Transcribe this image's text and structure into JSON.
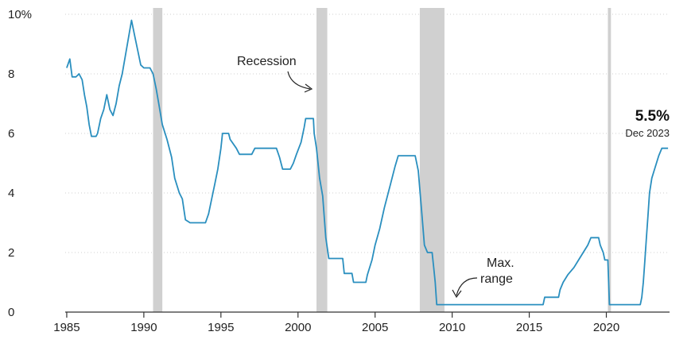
{
  "chart_data": {
    "type": "line",
    "series": [
      {
        "color": "#2a8fbf",
        "points": [
          [
            1985.0,
            8.2
          ],
          [
            1985.2,
            8.5
          ],
          [
            1985.35,
            7.9
          ],
          [
            1985.6,
            7.9
          ],
          [
            1985.8,
            8.0
          ],
          [
            1986.0,
            7.8
          ],
          [
            1986.15,
            7.3
          ],
          [
            1986.3,
            6.9
          ],
          [
            1986.45,
            6.3
          ],
          [
            1986.6,
            5.9
          ],
          [
            1986.9,
            5.9
          ],
          [
            1987.0,
            6.0
          ],
          [
            1987.2,
            6.5
          ],
          [
            1987.4,
            6.8
          ],
          [
            1987.6,
            7.3
          ],
          [
            1987.8,
            6.8
          ],
          [
            1988.0,
            6.6
          ],
          [
            1988.2,
            7.0
          ],
          [
            1988.4,
            7.6
          ],
          [
            1988.6,
            8.0
          ],
          [
            1988.8,
            8.6
          ],
          [
            1989.0,
            9.2
          ],
          [
            1989.2,
            9.8
          ],
          [
            1989.4,
            9.3
          ],
          [
            1989.6,
            8.8
          ],
          [
            1989.8,
            8.3
          ],
          [
            1990.0,
            8.2
          ],
          [
            1990.4,
            8.2
          ],
          [
            1990.6,
            8.0
          ],
          [
            1990.8,
            7.5
          ],
          [
            1991.0,
            6.9
          ],
          [
            1991.2,
            6.3
          ],
          [
            1991.5,
            5.8
          ],
          [
            1991.8,
            5.2
          ],
          [
            1992.0,
            4.5
          ],
          [
            1992.3,
            4.0
          ],
          [
            1992.5,
            3.8
          ],
          [
            1992.7,
            3.1
          ],
          [
            1993.0,
            3.0
          ],
          [
            1993.5,
            3.0
          ],
          [
            1994.0,
            3.0
          ],
          [
            1994.2,
            3.3
          ],
          [
            1994.4,
            3.8
          ],
          [
            1994.6,
            4.3
          ],
          [
            1994.8,
            4.8
          ],
          [
            1995.0,
            5.5
          ],
          [
            1995.1,
            6.0
          ],
          [
            1995.5,
            6.0
          ],
          [
            1995.6,
            5.8
          ],
          [
            1996.0,
            5.5
          ],
          [
            1996.2,
            5.3
          ],
          [
            1997.0,
            5.3
          ],
          [
            1997.2,
            5.5
          ],
          [
            1998.6,
            5.5
          ],
          [
            1998.8,
            5.2
          ],
          [
            1999.0,
            4.8
          ],
          [
            1999.5,
            4.8
          ],
          [
            1999.7,
            5.0
          ],
          [
            1999.9,
            5.3
          ],
          [
            2000.2,
            5.7
          ],
          [
            2000.4,
            6.2
          ],
          [
            2000.5,
            6.5
          ],
          [
            2001.0,
            6.5
          ],
          [
            2001.05,
            6.0
          ],
          [
            2001.2,
            5.5
          ],
          [
            2001.4,
            4.5
          ],
          [
            2001.6,
            3.9
          ],
          [
            2001.8,
            2.5
          ],
          [
            2002.0,
            1.8
          ],
          [
            2002.9,
            1.8
          ],
          [
            2003.0,
            1.3
          ],
          [
            2003.5,
            1.3
          ],
          [
            2003.6,
            1.0
          ],
          [
            2004.4,
            1.0
          ],
          [
            2004.5,
            1.25
          ],
          [
            2004.8,
            1.75
          ],
          [
            2005.0,
            2.25
          ],
          [
            2005.3,
            2.8
          ],
          [
            2005.6,
            3.5
          ],
          [
            2006.0,
            4.3
          ],
          [
            2006.3,
            4.9
          ],
          [
            2006.5,
            5.25
          ],
          [
            2007.6,
            5.25
          ],
          [
            2007.8,
            4.75
          ],
          [
            2008.0,
            3.5
          ],
          [
            2008.2,
            2.25
          ],
          [
            2008.4,
            2.0
          ],
          [
            2008.7,
            2.0
          ],
          [
            2008.8,
            1.5
          ],
          [
            2008.9,
            1.0
          ],
          [
            2009.0,
            0.25
          ],
          [
            2015.9,
            0.25
          ],
          [
            2016.0,
            0.5
          ],
          [
            2016.9,
            0.5
          ],
          [
            2017.0,
            0.75
          ],
          [
            2017.2,
            1.0
          ],
          [
            2017.5,
            1.25
          ],
          [
            2017.9,
            1.5
          ],
          [
            2018.2,
            1.75
          ],
          [
            2018.5,
            2.0
          ],
          [
            2018.8,
            2.25
          ],
          [
            2019.0,
            2.5
          ],
          [
            2019.5,
            2.5
          ],
          [
            2019.6,
            2.25
          ],
          [
            2019.8,
            2.0
          ],
          [
            2019.9,
            1.75
          ],
          [
            2020.1,
            1.75
          ],
          [
            2020.2,
            0.25
          ],
          [
            2022.2,
            0.25
          ],
          [
            2022.3,
            0.5
          ],
          [
            2022.4,
            1.0
          ],
          [
            2022.5,
            1.75
          ],
          [
            2022.6,
            2.5
          ],
          [
            2022.7,
            3.25
          ],
          [
            2022.8,
            4.0
          ],
          [
            2022.95,
            4.5
          ],
          [
            2023.1,
            4.75
          ],
          [
            2023.25,
            5.0
          ],
          [
            2023.4,
            5.25
          ],
          [
            2023.6,
            5.5
          ],
          [
            2024.0,
            5.5
          ]
        ]
      }
    ],
    "recessions": [
      [
        1990.6,
        1991.2
      ],
      [
        2001.2,
        2001.9
      ],
      [
        2007.9,
        2009.5
      ],
      [
        2020.1,
        2020.3
      ]
    ],
    "xlim": [
      1984.9,
      2024.1
    ],
    "ylim": [
      0,
      10
    ],
    "x_ticks": [
      "1985",
      "1990",
      "1995",
      "2000",
      "2005",
      "2010",
      "2015",
      "2020"
    ],
    "y_ticks": [
      "0",
      "2",
      "4",
      "6",
      "8",
      "10%"
    ],
    "annotations": {
      "recession": "Recession",
      "max_range_line1": "Max.",
      "max_range_line2": "range",
      "last_value": "5.5%",
      "last_date": "Dec 2023"
    },
    "grid": true
  }
}
